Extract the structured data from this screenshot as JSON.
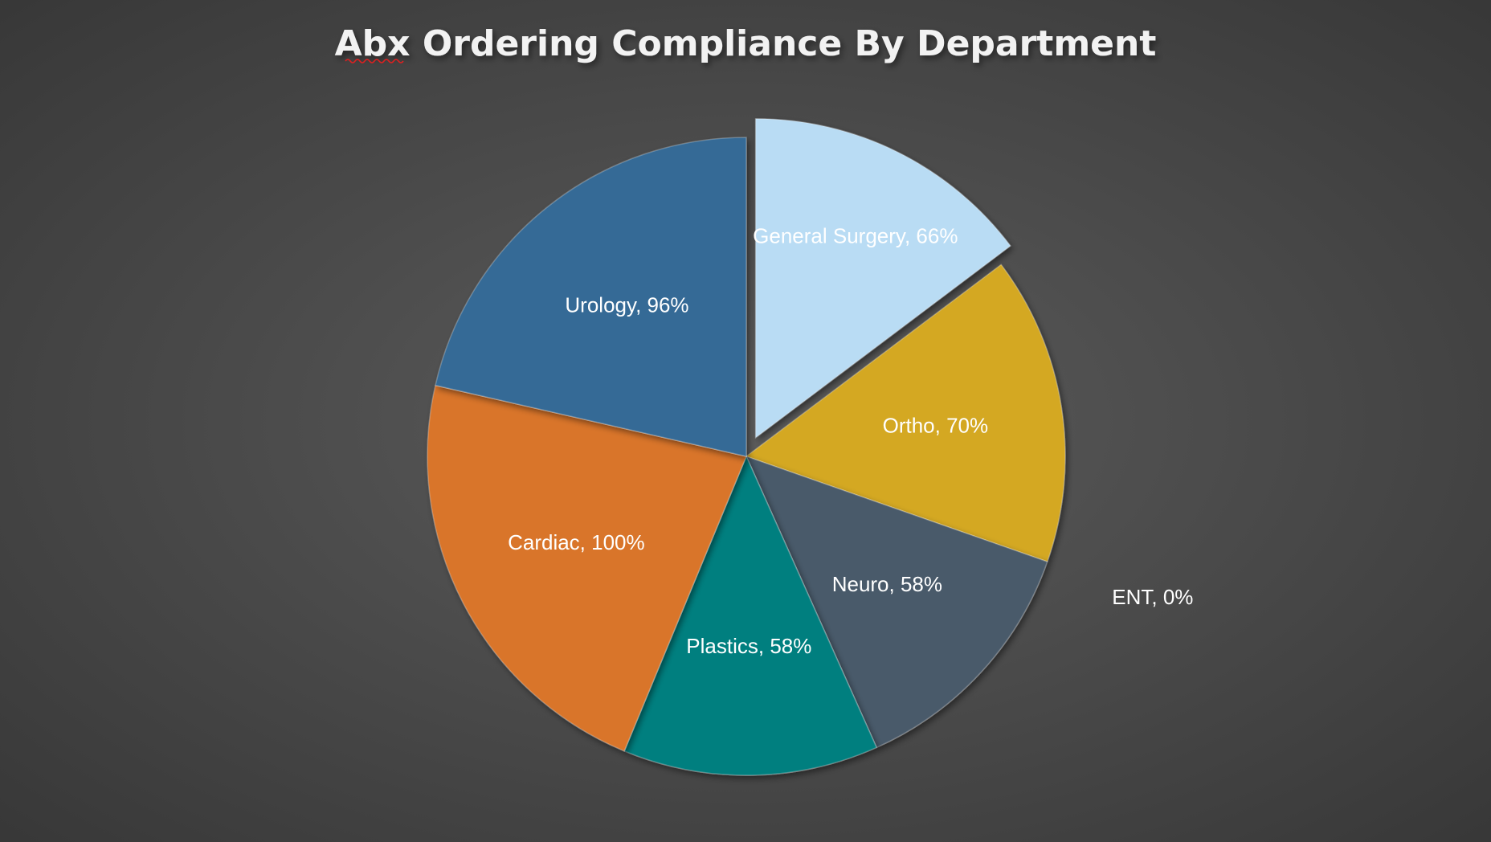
{
  "chart_data": {
    "type": "pie",
    "title": "Abx Ordering Compliance By Department",
    "values": [
      66,
      70,
      0,
      58,
      58,
      100,
      96
    ],
    "value_labels": [
      "General Surgery, 66%",
      "Ortho, 70%",
      "ENT, 0%",
      "Neuro, 58%",
      "Plastics, 58%",
      "Cardiac, 100%",
      "Urology, 96%"
    ],
    "colors": [
      "#b9dcf4",
      "#d4a823",
      "#a5a5a5",
      "#495a6b",
      "#067f7f",
      "#d9752a",
      "#346a96"
    ],
    "explode": [
      true,
      false,
      false,
      false,
      false,
      false,
      false
    ]
  }
}
